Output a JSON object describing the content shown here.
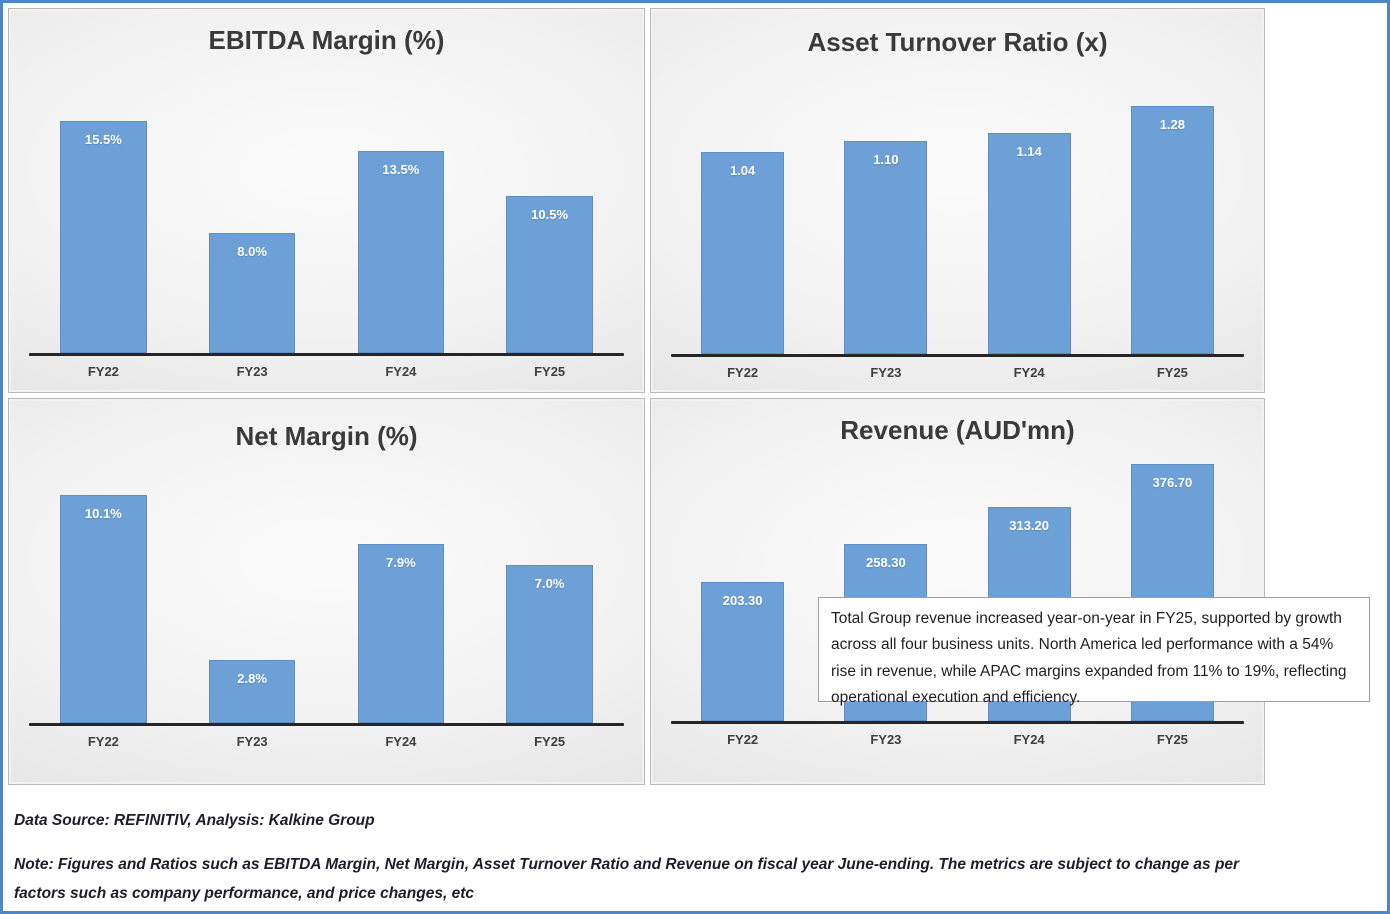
{
  "page": {
    "bar_color": "#6CA0D6",
    "border_color": "#4f86c6",
    "axis_color": "#262626"
  },
  "chart_data": [
    {
      "type": "bar",
      "title": "EBITDA Margin (%)",
      "categories": [
        "FY22",
        "FY23",
        "FY24",
        "FY25"
      ],
      "values": [
        15.5,
        8.0,
        13.5,
        10.5
      ],
      "labels": [
        "15.5%",
        "8.0%",
        "13.5%",
        "10.5%"
      ],
      "xlabel": "",
      "ylabel": "",
      "ylim": [
        0,
        16
      ],
      "grid": false,
      "legend": "none"
    },
    {
      "type": "bar",
      "title": "Asset Turnover Ratio (x)",
      "categories": [
        "FY22",
        "FY23",
        "FY24",
        "FY25"
      ],
      "values": [
        1.04,
        1.1,
        1.14,
        1.28
      ],
      "labels": [
        "1.04",
        "1.10",
        "1.14",
        "1.28"
      ],
      "xlabel": "",
      "ylabel": "",
      "ylim": [
        0,
        1.35
      ],
      "grid": false,
      "legend": "none"
    },
    {
      "type": "bar",
      "title": "Net Margin (%)",
      "categories": [
        "FY22",
        "FY23",
        "FY24",
        "FY25"
      ],
      "values": [
        10.1,
        2.8,
        7.9,
        7.0
      ],
      "labels": [
        "10.1%",
        "2.8%",
        "7.9%",
        "7.0%"
      ],
      "xlabel": "",
      "ylabel": "",
      "ylim": [
        0,
        11.5
      ],
      "grid": false,
      "legend": "none"
    },
    {
      "type": "bar",
      "title": "Revenue (AUD'mn)",
      "categories": [
        "FY22",
        "FY23",
        "FY24",
        "FY25"
      ],
      "values": [
        203.3,
        258.3,
        313.2,
        376.7
      ],
      "labels": [
        "203.30",
        "258.30",
        "313.20",
        "376.70"
      ],
      "xlabel": "",
      "ylabel": "",
      "ylim": [
        0,
        395
      ],
      "grid": false,
      "legend": "none"
    }
  ],
  "annotation": {
    "text": "Total Group revenue increased year-on-year in FY25, supported by growth across all four business units. North America led performance with a 54% rise in revenue, while APAC margins expanded from 11% to 19%, reflecting operational execution and efficiency."
  },
  "footer": {
    "source": "Data Source: REFINITIV, Analysis: Kalkine Group",
    "note": "Note: Figures and Ratios such as EBITDA Margin, Net Margin, Asset Turnover Ratio and Revenue on fiscal year June-ending. The metrics are subject to change as per factors such as company performance, and price changes, etc"
  }
}
